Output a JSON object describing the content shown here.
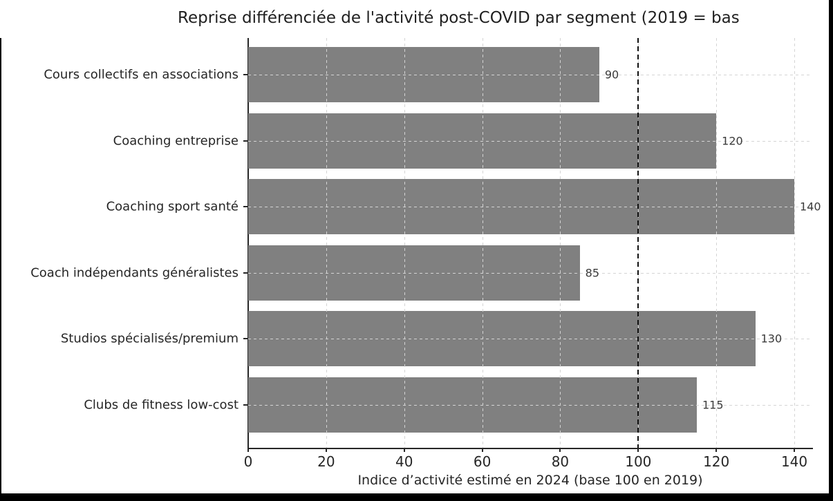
{
  "chart_data": {
    "type": "bar",
    "orientation": "horizontal",
    "title": "Reprise différenciée de l'activité post-COVID par segment (2019 = bas",
    "categories": [
      "Cours collectifs en associations",
      "Coaching entreprise",
      "Coaching sport santé",
      "Coach indépendants généralistes",
      "Studios spécialisés/premium",
      "Clubs de fitness low-cost"
    ],
    "values": [
      90,
      120,
      140,
      85,
      130,
      115
    ],
    "value_labels": [
      "90",
      "120",
      "140",
      "85",
      "130",
      "115"
    ],
    "xlabel": "Indice d’activité estimé en 2024 (base 100 en 2019)",
    "x_ticks": [
      0,
      20,
      40,
      60,
      80,
      100,
      120,
      140
    ],
    "xlim": [
      0,
      144.6
    ],
    "reference_line_x": 100,
    "grid": {
      "style": "dashed",
      "horizontal": true,
      "vertical": true,
      "color": "#d4d4d4"
    },
    "legend": false,
    "colors": {
      "bar": "#808080",
      "reference_line": "#111111",
      "axis": "#262626",
      "tick_text": "#262626",
      "value_text": "#3a3a3a",
      "background": "#ffffff"
    }
  }
}
